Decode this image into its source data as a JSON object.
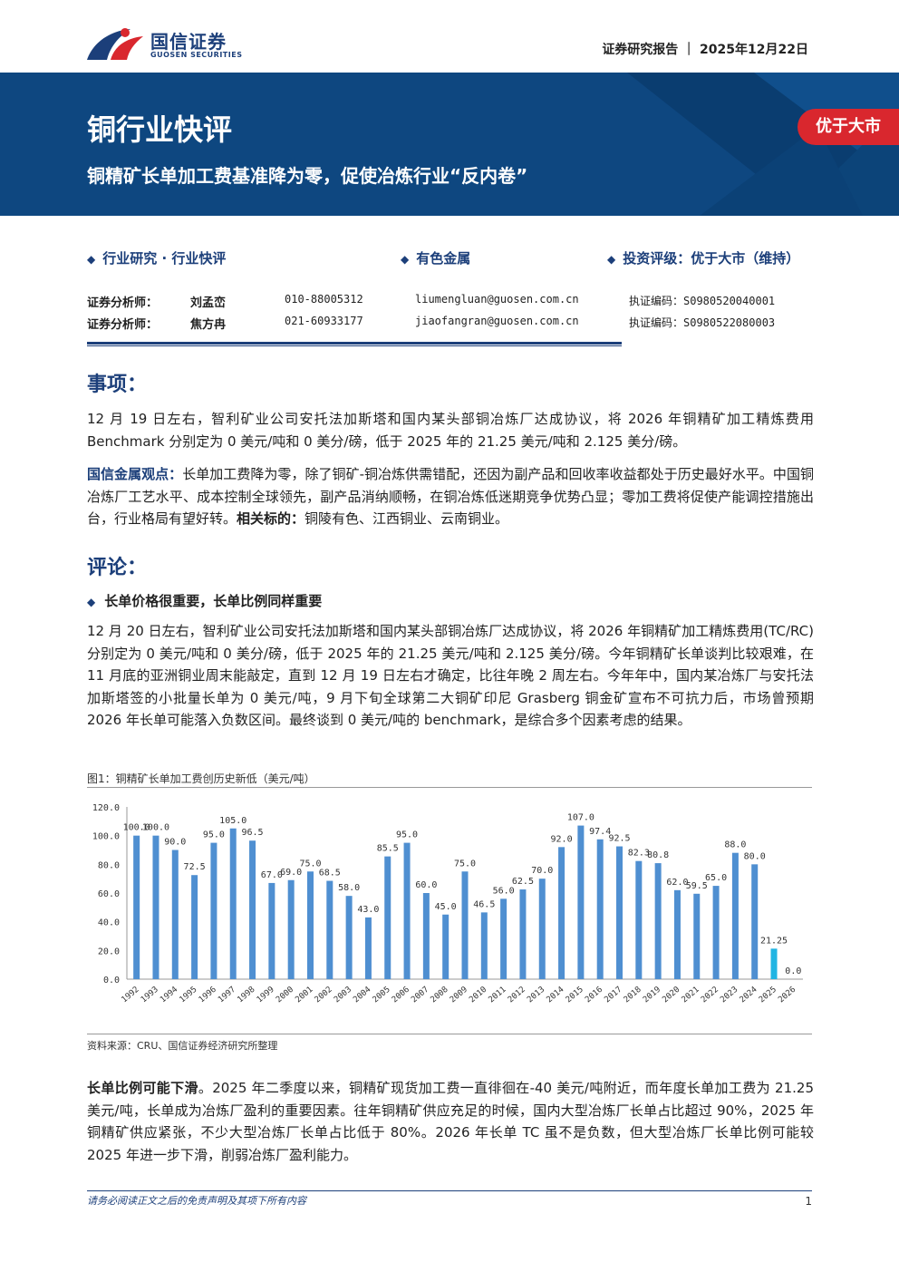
{
  "header": {
    "logo_cn": "国信证券",
    "logo_en": "GUOSEN SECURITIES",
    "report_type": "证券研究报告 ｜ 2025年12月22日"
  },
  "banner": {
    "title": "铜行业快评",
    "subtitle": "铜精矿长单加工费基准降为零，促使冶炼行业“反内卷”",
    "rating_tag": "优于大市"
  },
  "categories": {
    "research": "行业研究 · 行业快评",
    "sector": "有色金属",
    "rating": "投资评级：优于大市（维持）"
  },
  "analysts": [
    {
      "label": "证券分析师：",
      "name": "刘孟峦",
      "phone": "010-88005312",
      "email": "liumengluan@guosen.com.cn",
      "cert": "执证编码：S0980520040001"
    },
    {
      "label": "证券分析师：",
      "name": "焦方冉",
      "phone": "021-60933177",
      "email": "jiaofangran@guosen.com.cn",
      "cert": "执证编码：S0980522080003"
    }
  ],
  "section1": {
    "heading": "事项：",
    "para1": "12 月 19 日左右，智利矿业公司安托法加斯塔和国内某头部铜冶炼厂达成协议，将 2026 年铜精矿加工精炼费用 Benchmark 分别定为 0 美元/吨和 0 美分/磅，低于 2025 年的 21.25 美元/吨和 2.125 美分/磅。",
    "view_label": "国信金属观点：",
    "view_text": "长单加工费降为零，除了铜矿-铜冶炼供需错配，还因为副产品和回收率收益都处于历史最好水平。中国铜冶炼厂工艺水平、成本控制全球领先，副产品消纳顺畅，在铜冶炼低迷期竞争优势凸显；零加工费将促使产能调控措施出台，行业格局有望好转。",
    "target_label": "相关标的：",
    "target_text": "铜陵有色、江西铜业、云南铜业。"
  },
  "section2": {
    "heading": "评论：",
    "sub_heading": "长单价格很重要，长单比例同样重要",
    "para1": "12 月 20 日左右，智利矿业公司安托法加斯塔和国内某头部铜冶炼厂达成协议，将 2026 年铜精矿加工精炼费用(TC/RC) 分别定为 0 美元/吨和 0 美分/磅，低于 2025 年的 21.25 美元/吨和 2.125 美分/磅。今年铜精矿长单谈判比较艰难，在 11 月底的亚洲铜业周末能敲定，直到 12 月 19 日左右才确定，比往年晚 2 周左右。今年年中，国内某冶炼厂与安托法加斯塔签的小批量长单为 0 美元/吨，9 月下旬全球第二大铜矿印尼 Grasberg 铜金矿宣布不可抗力后，市场曾预期 2026 年长单可能落入负数区间。最终谈到 0 美元/吨的 benchmark，是综合多个因素考虑的结果。",
    "figure_caption": "图1：铜精矿长单加工费创历史新低（美元/吨）",
    "source": "资料来源：CRU、国信证券经济研究所整理",
    "para2_label": "长单比例可能下滑",
    "para2_text": "。2025 年二季度以来，铜精矿现货加工费一直徘徊在-40 美元/吨附近，而年度长单加工费为 21.25 美元/吨，长单成为冶炼厂盈利的重要因素。往年铜精矿供应充足的时候，国内大型冶炼厂长单占比超过 90%，2025 年铜精矿供应紧张，不少大型冶炼厂长单占比低于 80%。2026 年长单 TC 虽不是负数，但大型冶炼厂长单比例可能较 2025 年进一步下滑，削弱冶炼厂盈利能力。"
  },
  "chart_data": {
    "type": "bar",
    "categories": [
      "1992",
      "1993",
      "1994",
      "1995",
      "1996",
      "1997",
      "1998",
      "1999",
      "2000",
      "2001",
      "2002",
      "2003",
      "2004",
      "2005",
      "2006",
      "2007",
      "2008",
      "2009",
      "2010",
      "2011",
      "2012",
      "2013",
      "2014",
      "2015",
      "2016",
      "2017",
      "2018",
      "2019",
      "2020",
      "2021",
      "2022",
      "2023",
      "2024",
      "2025",
      "2026"
    ],
    "values": [
      100.0,
      100.0,
      90.0,
      72.5,
      95.0,
      105.0,
      96.5,
      67.0,
      69.0,
      75.0,
      68.5,
      58.0,
      43.0,
      85.5,
      95.0,
      60.0,
      45.0,
      75.0,
      46.5,
      56.0,
      62.5,
      70.0,
      92.0,
      107.0,
      97.4,
      92.5,
      82.3,
      80.8,
      62.0,
      59.5,
      65.0,
      88.0,
      80.0,
      21.25,
      0.0
    ],
    "labels": [
      "100.0",
      "100.0",
      "90.0",
      "72.5",
      "95.0",
      "105.0",
      "96.5",
      "67.0",
      "69.0",
      "75.0",
      "68.5",
      "58.0",
      "43.0",
      "85.5",
      "95.0",
      "60.0",
      "45.0",
      "75.0",
      "46.5",
      "56.0",
      "62.5",
      "70.0",
      "92.0",
      "107.0",
      "97.4",
      "92.5",
      "82.3",
      "80.8",
      "62.0",
      "59.5",
      "65.0",
      "88.0",
      "80.0",
      "21.25",
      "0.0"
    ],
    "yticks": [
      "0.0",
      "20.0",
      "40.0",
      "60.0",
      "80.0",
      "100.0",
      "120.0"
    ],
    "ylim": [
      0,
      120
    ],
    "grid": false,
    "colors": {
      "bar": "#4f8fd1",
      "highlight": "#21b5e3"
    }
  },
  "footer": {
    "disclaimer": "请务必阅读正文之后的免责声明及其项下所有内容",
    "page": "1"
  }
}
